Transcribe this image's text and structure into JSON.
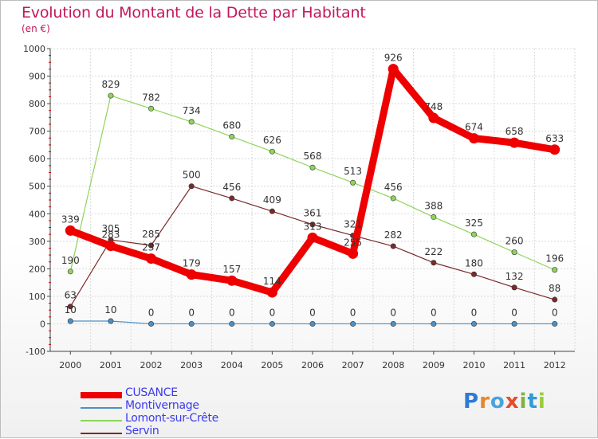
{
  "header": {
    "title": "Evolution du Montant de la Dette par Habitant",
    "subtitle": "(en €)"
  },
  "logo": {
    "text": "Proxiti",
    "letters": [
      "P",
      "r",
      "o",
      "x",
      "i",
      "t",
      "i"
    ],
    "colors": [
      "#2e7bd6",
      "#e8862a",
      "#4aa3df",
      "#e84b2a",
      "#7cb342",
      "#2e9bd6",
      "#9ccc3a"
    ]
  },
  "chart_data": {
    "type": "line",
    "x": [
      2000,
      2001,
      2002,
      2003,
      2004,
      2005,
      2006,
      2007,
      2008,
      2009,
      2010,
      2011,
      2012
    ],
    "ylim": [
      -100,
      1000
    ],
    "yticks": [
      -100,
      0,
      100,
      200,
      300,
      400,
      500,
      600,
      700,
      800,
      900,
      1000
    ],
    "grid": true,
    "legend_position": "bottom-left",
    "series": [
      {
        "name": "CUSANCE",
        "color": "#ee0000",
        "values": [
          339,
          283,
          237,
          179,
          157,
          114,
          313,
          255,
          926,
          748,
          674,
          658,
          633
        ]
      },
      {
        "name": "Montivernage",
        "color": "#4a90c8",
        "values": [
          10,
          10,
          0,
          0,
          0,
          0,
          0,
          0,
          0,
          0,
          0,
          0,
          0
        ]
      },
      {
        "name": "Lomont-sur-Crête",
        "color": "#8fd45a",
        "values": [
          190,
          829,
          782,
          734,
          680,
          626,
          568,
          513,
          456,
          388,
          325,
          260,
          196
        ]
      },
      {
        "name": "Servin",
        "color": "#7a2a2a",
        "values": [
          63,
          305,
          285,
          500,
          456,
          409,
          361,
          321,
          282,
          222,
          180,
          132,
          88
        ]
      }
    ]
  }
}
